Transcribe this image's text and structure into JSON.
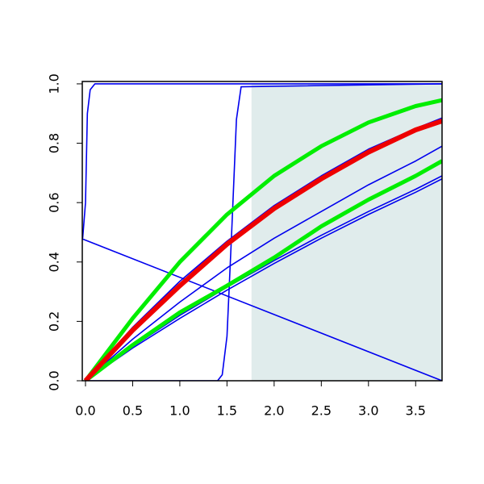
{
  "chart_data": {
    "type": "line",
    "xlim": [
      -0.034,
      3.78
    ],
    "ylim": [
      0,
      1.008
    ],
    "xticks": [
      {
        "value": 0,
        "label": "0.0"
      },
      {
        "value": 0.5,
        "label": "0.5"
      },
      {
        "value": 1,
        "label": "1.0"
      },
      {
        "value": 1.5,
        "label": "1.5"
      },
      {
        "value": 2,
        "label": "2.0"
      },
      {
        "value": 2.5,
        "label": "2.5"
      },
      {
        "value": 3,
        "label": "3.0"
      },
      {
        "value": 3.5,
        "label": "3.5"
      }
    ],
    "yticks": [
      {
        "value": 0,
        "label": "0.0"
      },
      {
        "value": 0.2,
        "label": "0.2"
      },
      {
        "value": 0.4,
        "label": "0.4"
      },
      {
        "value": 0.6,
        "label": "0.6"
      },
      {
        "value": 0.8,
        "label": "0.8"
      },
      {
        "value": 1,
        "label": "1.0"
      }
    ],
    "shaded_region": {
      "x": [
        1.76,
        3.78
      ],
      "y": [
        0,
        1
      ],
      "color": "#e0ecec"
    },
    "series": [
      {
        "color": "#0000ee",
        "width": 1.6,
        "x": [
          0,
          0.5,
          1,
          1.5,
          2,
          2.5,
          3,
          3.5,
          3.78
        ],
        "values": [
          0,
          0.18,
          0.335,
          0.47,
          0.59,
          0.69,
          0.78,
          0.85,
          0.885
        ]
      },
      {
        "color": "#0000ee",
        "width": 1.6,
        "x": [
          0,
          0.5,
          1,
          1.5,
          2,
          2.5,
          3,
          3.5,
          3.78
        ],
        "values": [
          0,
          0.14,
          0.265,
          0.38,
          0.48,
          0.57,
          0.66,
          0.74,
          0.79
        ]
      },
      {
        "color": "#0000ee",
        "width": 1.6,
        "x": [
          0,
          0.5,
          1,
          1.5,
          2,
          2.5,
          3,
          3.5,
          3.78
        ],
        "values": [
          0,
          0.115,
          0.22,
          0.315,
          0.405,
          0.49,
          0.57,
          0.645,
          0.69
        ]
      },
      {
        "color": "#0000ee",
        "width": 1.6,
        "x": [
          0,
          0.5,
          1,
          1.5,
          2,
          2.5,
          3,
          3.5,
          3.78
        ],
        "values": [
          0,
          0.11,
          0.21,
          0.305,
          0.395,
          0.48,
          0.56,
          0.635,
          0.68
        ]
      },
      {
        "color": "#0000ee",
        "width": 1.6,
        "x": [
          -0.034,
          3.78
        ],
        "values": [
          0.478,
          0
        ]
      },
      {
        "color": "#0000ee",
        "width": 1.6,
        "x": [
          0,
          1.4,
          1.45,
          1.5,
          1.55,
          1.6,
          1.65,
          3.78
        ],
        "values": [
          0,
          0,
          0.02,
          0.15,
          0.5,
          0.88,
          0.99,
          1
        ]
      },
      {
        "color": "#0000ee",
        "width": 1.6,
        "x": [
          -0.03,
          0,
          0.02,
          0.05,
          0.1,
          3.78
        ],
        "values": [
          0.48,
          0.6,
          0.9,
          0.98,
          1,
          1
        ]
      },
      {
        "color": "#00ee00",
        "width": 5,
        "x": [
          0,
          0.5,
          1,
          1.5,
          2,
          2.5,
          3,
          3.5,
          3.78
        ],
        "values": [
          0,
          0.21,
          0.4,
          0.56,
          0.69,
          0.79,
          0.87,
          0.925,
          0.945
        ]
      },
      {
        "color": "#00ee00",
        "width": 5,
        "x": [
          0,
          0.5,
          1,
          1.5,
          2,
          2.5,
          3,
          3.5,
          3.78
        ],
        "values": [
          0,
          0.12,
          0.23,
          0.32,
          0.415,
          0.52,
          0.61,
          0.69,
          0.74
        ]
      },
      {
        "color": "#ee0000",
        "width": 6,
        "x": [
          0,
          0.5,
          1,
          1.5,
          2,
          2.5,
          3,
          3.5,
          3.78
        ],
        "values": [
          0,
          0.17,
          0.32,
          0.46,
          0.58,
          0.68,
          0.77,
          0.845,
          0.875
        ]
      }
    ]
  }
}
